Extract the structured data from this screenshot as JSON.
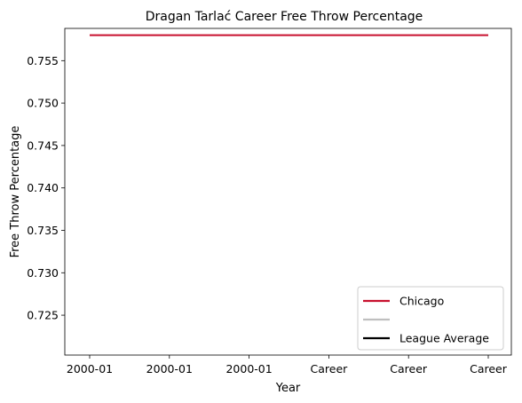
{
  "chart_data": {
    "type": "line",
    "title": "Dragan Tarlać Career Free Throw Percentage",
    "xlabel": "Year",
    "ylabel": "Free Throw Percentage",
    "x_ticks": [
      "2000-01",
      "2000-01",
      "2000-01",
      "Career",
      "Career",
      "Career"
    ],
    "y_ticks": [
      "0.725",
      "0.730",
      "0.735",
      "0.740",
      "0.745",
      "0.750",
      "0.755"
    ],
    "ylim": [
      0.7203,
      0.7588
    ],
    "grid": false,
    "legend_position": "lower-right",
    "series": [
      {
        "name": "Chicago",
        "color": "#c8102e",
        "values": [
          0.758,
          0.758,
          0.758,
          0.758,
          0.758,
          0.758
        ]
      }
    ],
    "legend": [
      {
        "name": "Chicago",
        "color": "#c8102e"
      },
      {
        "name": "",
        "color": "#bfbfbf"
      },
      {
        "name": "League Average",
        "color": "#000000"
      }
    ]
  }
}
